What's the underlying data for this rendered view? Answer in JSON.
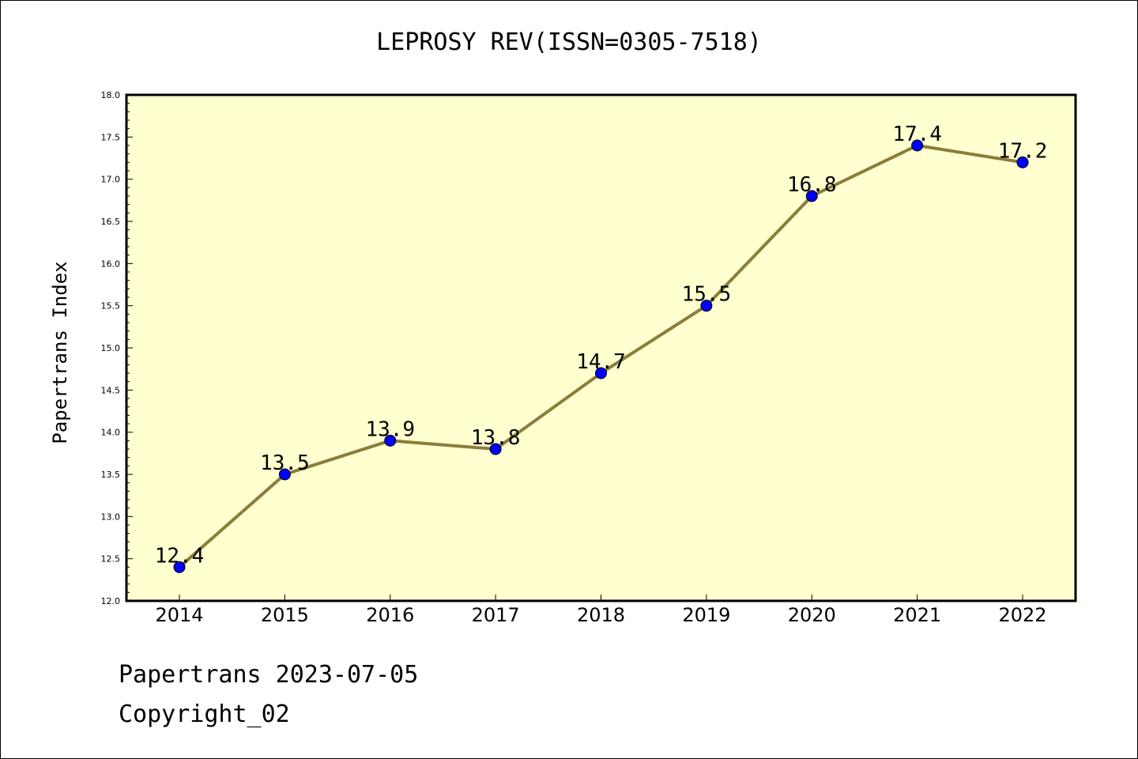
{
  "chart_data": {
    "type": "line",
    "title": "LEPROSY REV(ISSN=0305-7518)",
    "xlabel": "",
    "ylabel": "Papertrans Index",
    "categories": [
      "2014",
      "2015",
      "2016",
      "2017",
      "2018",
      "2019",
      "2020",
      "2021",
      "2022"
    ],
    "series": [
      {
        "values": [
          12.4,
          13.5,
          13.9,
          13.8,
          14.7,
          15.5,
          16.8,
          17.4,
          17.2
        ],
        "labels": [
          "12.4",
          "13.5",
          "13.9",
          "13.8",
          "14.7",
          "15.5",
          "16.8",
          "17.4",
          "17.2"
        ],
        "line_color": "#8b7d3a",
        "marker_color": "#0000ff"
      }
    ],
    "ylim": [
      12.0,
      18.0
    ],
    "y_ticks": [
      "12.0",
      "12.5",
      "13.0",
      "13.5",
      "14.0",
      "14.5",
      "15.0",
      "15.5",
      "16.0",
      "16.5",
      "17.0",
      "17.5",
      "18.0"
    ],
    "plot_background": "#ffffd0",
    "grid": false,
    "legend": "none"
  },
  "footer": {
    "line1": "Papertrans 2023-07-05",
    "line2": "Copyright_02"
  }
}
